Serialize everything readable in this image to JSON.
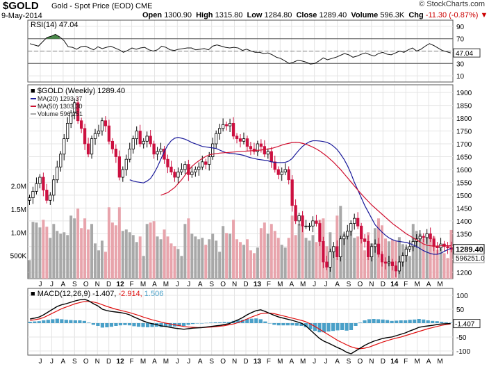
{
  "header": {
    "symbol": "$GOLD",
    "name": "Gold - Spot Price (EOD)",
    "exchange": "CME",
    "date": "9-May-2014",
    "open_label": "Open",
    "open": "1300.90",
    "high_label": "High",
    "high": "1315.80",
    "low_label": "Low",
    "low": "1284.80",
    "close_label": "Close",
    "close": "1289.40",
    "volume_label": "Volume",
    "volume": "596.3K",
    "chg_label": "Chg",
    "chg": "-11.30 (-0.87%)",
    "copyright": "© StockCharts.com"
  },
  "colors": {
    "ma20": "#1a1a9a",
    "ma50": "#d01030",
    "up_candle": "#ffffff",
    "down_candle": "#cc1040",
    "volume_up": "#a8a8a8",
    "volume_down": "#e8a4ac",
    "rsi_fill_high": "#4a8a4a",
    "rsi_fill_low": "#8a3a3a",
    "macd_line": "#000000",
    "signal_line": "#e01010",
    "histogram": "#4aa0c8"
  },
  "chart_data": [
    {
      "id": "rsi",
      "type": "line",
      "title": "RSI(14) 47.04",
      "indicator": "RSI(14)",
      "last_value": 47.04,
      "last_label": "47.04",
      "ylim": [
        0,
        100
      ],
      "yticks": [
        90,
        70,
        50,
        30,
        10
      ],
      "thresholds": [
        70,
        30
      ],
      "values": [
        62,
        60,
        58,
        65,
        72,
        74,
        77,
        73,
        67,
        57,
        56,
        53,
        57,
        58,
        55,
        52,
        57,
        54,
        56,
        58,
        55,
        52,
        48,
        51,
        55,
        53,
        55,
        56,
        52,
        50,
        52,
        58,
        56,
        52,
        51,
        53,
        54,
        55,
        55,
        52,
        53,
        54,
        52,
        58,
        60,
        58,
        56,
        55,
        56,
        55,
        51,
        53,
        50,
        48,
        48,
        46,
        47,
        44,
        40,
        38,
        34,
        30,
        32,
        35,
        34,
        32,
        29,
        30,
        34,
        39,
        36,
        38,
        40,
        43,
        46,
        44,
        40,
        42,
        45,
        47,
        44,
        42,
        46,
        48,
        45,
        44,
        47,
        50,
        48,
        52,
        55,
        50,
        53,
        58,
        62,
        59,
        55,
        51,
        49,
        47
      ]
    },
    {
      "id": "price",
      "type": "candlestick",
      "title": "$GOLD (Weekly) 1289.40",
      "legend": [
        {
          "label": "MA(20) 1293.37",
          "color": "#1a1a9a"
        },
        {
          "label": "MA(50) 1303.30",
          "color": "#d01030"
        },
        {
          "label": "Volume 596,251",
          "color": "#a8a8a8"
        }
      ],
      "last_close": 1289.4,
      "last_close_label": "1289.40",
      "ylim": [
        1175,
        1930
      ],
      "yticks": [
        1900,
        1850,
        1800,
        1750,
        1700,
        1650,
        1600,
        1550,
        1500,
        1450,
        1400,
        1350,
        1300,
        1250,
        1200
      ],
      "volume_ticks": [
        {
          "label": "2.0M",
          "value": 2000000
        },
        {
          "label": "1.5M",
          "value": 1500000
        },
        {
          "label": "1.0M",
          "value": 1000000
        },
        {
          "label": "500K",
          "value": 500000
        }
      ],
      "volume_last_label": "596251.0",
      "closes": [
        1490,
        1515,
        1545,
        1570,
        1520,
        1480,
        1500,
        1560,
        1610,
        1660,
        1720,
        1780,
        1820,
        1860,
        1790,
        1760,
        1700,
        1660,
        1720,
        1740,
        1750,
        1790,
        1770,
        1710,
        1680,
        1650,
        1570,
        1600,
        1640,
        1680,
        1720,
        1750,
        1700,
        1710,
        1730,
        1700,
        1660,
        1670,
        1680,
        1640,
        1610,
        1590,
        1570,
        1590,
        1600,
        1620,
        1580,
        1590,
        1600,
        1610,
        1630,
        1620,
        1650,
        1700,
        1740,
        1760,
        1775,
        1770,
        1780,
        1730,
        1720,
        1710,
        1720,
        1690,
        1680,
        1670,
        1700,
        1690,
        1660,
        1670,
        1630,
        1600,
        1580,
        1590,
        1600,
        1560,
        1460,
        1400,
        1420,
        1380,
        1380,
        1380,
        1400,
        1390,
        1320,
        1240,
        1220,
        1280,
        1300,
        1260,
        1330,
        1340,
        1360,
        1390,
        1410,
        1380,
        1330,
        1320,
        1260,
        1300,
        1310,
        1270,
        1240,
        1235,
        1240,
        1225,
        1205,
        1240,
        1265,
        1290,
        1300,
        1320,
        1330,
        1340,
        1335,
        1350,
        1330,
        1300,
        1295,
        1310,
        1300,
        1295,
        1289.4
      ],
      "ma20": [
        1560,
        1555,
        1552,
        1550,
        1548,
        1555,
        1565,
        1585,
        1610,
        1640,
        1670,
        1695,
        1712,
        1722,
        1725,
        1722,
        1718,
        1712,
        1705,
        1700,
        1695,
        1690,
        1688,
        1686,
        1684,
        1682,
        1676,
        1670,
        1665,
        1663,
        1662,
        1660,
        1658,
        1655,
        1650,
        1646,
        1643,
        1640,
        1638,
        1636,
        1634,
        1630,
        1628,
        1627,
        1627,
        1628,
        1633,
        1643,
        1660,
        1676,
        1690,
        1700,
        1708,
        1712,
        1712,
        1711,
        1709,
        1706,
        1700,
        1690,
        1678,
        1660,
        1640,
        1615,
        1585,
        1550,
        1520,
        1490,
        1460,
        1435,
        1410,
        1385,
        1370,
        1356,
        1344,
        1334,
        1327,
        1322,
        1320,
        1318,
        1316,
        1312,
        1306,
        1300,
        1292,
        1284,
        1278,
        1273,
        1270,
        1270,
        1274,
        1281,
        1288,
        1293.37
      ],
      "ma50_start_index": 17,
      "ma50": [
        1500,
        1505,
        1510,
        1520,
        1530,
        1545,
        1560,
        1578,
        1596,
        1612,
        1624,
        1634,
        1643,
        1651,
        1657,
        1660,
        1662,
        1664,
        1665,
        1666,
        1667,
        1668,
        1669,
        1670,
        1671,
        1672,
        1673,
        1674,
        1675,
        1676,
        1678,
        1680,
        1682,
        1686,
        1690,
        1695,
        1699,
        1702,
        1705,
        1706,
        1705,
        1702,
        1698,
        1693,
        1687,
        1680,
        1672,
        1662,
        1652,
        1640,
        1628,
        1614,
        1600,
        1584,
        1568,
        1552,
        1536,
        1520,
        1505,
        1490,
        1476,
        1462,
        1450,
        1438,
        1426,
        1414,
        1402,
        1390,
        1380,
        1370,
        1360,
        1350,
        1342,
        1334,
        1326,
        1318,
        1310,
        1305,
        1303,
        1302,
        1302,
        1303,
        1304,
        1303,
        1303.3
      ],
      "volume_scale_max": 2300000
    },
    {
      "id": "macd",
      "type": "line",
      "title": "MACD(12,26,9) -1.407, -2.914, 1.506",
      "macd_value": "-1.407",
      "signal_value": "-2.914",
      "histogram_value": "1.506",
      "last_label": "-1.407",
      "ylim": [
        -115,
        125
      ],
      "yticks": [
        100,
        50,
        0,
        -50,
        -100
      ],
      "macd": [
        15,
        18,
        22,
        30,
        40,
        50,
        60,
        66,
        70,
        75,
        80,
        84,
        86,
        80,
        70,
        62,
        50,
        45,
        42,
        40,
        38,
        35,
        30,
        22,
        15,
        8,
        2,
        -2,
        -5,
        -10,
        -12,
        -15,
        -18,
        -20,
        -22,
        -20,
        -18,
        -17,
        -16,
        -14,
        -12,
        -10,
        -8,
        -5,
        -2,
        5,
        12,
        20,
        30,
        38,
        45,
        48,
        42,
        35,
        28,
        22,
        18,
        14,
        10,
        5,
        0,
        -10,
        -25,
        -40,
        -55,
        -65,
        -72,
        -80,
        -88,
        -95,
        -105,
        -110,
        -100,
        -90,
        -80,
        -72,
        -65,
        -60,
        -55,
        -52,
        -50,
        -45,
        -40,
        -35,
        -28,
        -22,
        -15,
        -12,
        -10,
        -8,
        -5,
        -3,
        -2,
        -1.407
      ],
      "signal": [
        10,
        12,
        15,
        20,
        28,
        36,
        44,
        52,
        58,
        64,
        70,
        74,
        78,
        78,
        76,
        72,
        66,
        60,
        55,
        50,
        46,
        42,
        38,
        33,
        28,
        22,
        17,
        12,
        8,
        4,
        0,
        -3,
        -6,
        -9,
        -12,
        -14,
        -15,
        -16,
        -16,
        -15,
        -14,
        -13,
        -11,
        -9,
        -6,
        -3,
        2,
        8,
        15,
        22,
        28,
        34,
        36,
        36,
        34,
        30,
        26,
        22,
        18,
        14,
        10,
        5,
        -3,
        -12,
        -22,
        -32,
        -42,
        -52,
        -62,
        -70,
        -78,
        -85,
        -90,
        -92,
        -90,
        -86,
        -80,
        -74,
        -68,
        -63,
        -58,
        -54,
        -50,
        -45,
        -40,
        -35,
        -30,
        -25,
        -20,
        -16,
        -12,
        -8,
        -5,
        -2.914
      ]
    }
  ],
  "x_axis": {
    "labels": [
      "J",
      "J",
      "A",
      "S",
      "O",
      "N",
      "D",
      "12",
      "F",
      "M",
      "A",
      "M",
      "J",
      "J",
      "A",
      "S",
      "O",
      "N",
      "D",
      "13",
      "F",
      "M",
      "A",
      "M",
      "J",
      "J",
      "A",
      "S",
      "O",
      "N",
      "D",
      "14",
      "F",
      "M",
      "A",
      "M"
    ],
    "bold_labels": [
      "12",
      "13",
      "14"
    ]
  }
}
